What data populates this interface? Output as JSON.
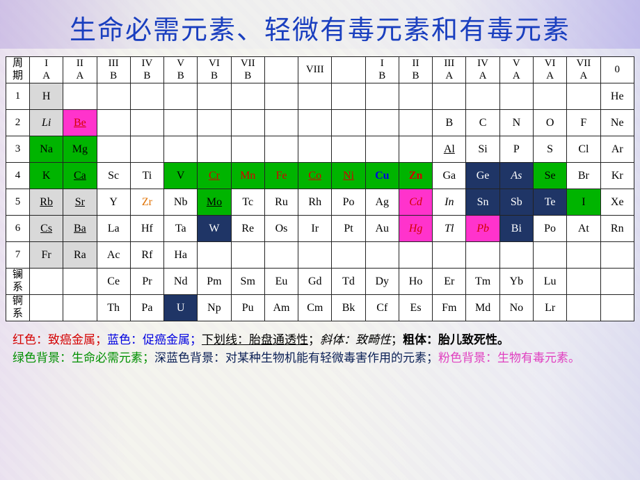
{
  "title": "生命必需元素、轻微有毒元素和有毒元素",
  "colors": {
    "title": "#1a3fbf",
    "cell_gray": "#d9d9d9",
    "cell_green": "#00b400",
    "cell_magenta": "#ff33cc",
    "cell_navy": "#1f3566",
    "txt_red": "#d40000",
    "txt_blue": "#0000e0",
    "txt_orange": "#e07000",
    "txt_white": "#ffffff"
  },
  "headers": {
    "period": "周\n期",
    "groups": [
      "I\nA",
      "II\nA",
      "III\nB",
      "IV\nB",
      "V\nB",
      "VI\nB",
      "VII\nB",
      "",
      "VIII",
      "",
      "I\nB",
      "II\nB",
      "III\nA",
      "IV\nA",
      "V\nA",
      "VI\nA",
      "VII\nA",
      "0"
    ]
  },
  "rows": [
    {
      "label": "1",
      "cells": [
        {
          "t": "H",
          "bg": "gray"
        },
        {
          "t": ""
        },
        {
          "t": ""
        },
        {
          "t": ""
        },
        {
          "t": ""
        },
        {
          "t": ""
        },
        {
          "t": ""
        },
        {
          "t": ""
        },
        {
          "t": ""
        },
        {
          "t": ""
        },
        {
          "t": ""
        },
        {
          "t": ""
        },
        {
          "t": ""
        },
        {
          "t": ""
        },
        {
          "t": ""
        },
        {
          "t": ""
        },
        {
          "t": ""
        },
        {
          "t": "He"
        }
      ]
    },
    {
      "label": "2",
      "cells": [
        {
          "t": "Li",
          "bg": "gray",
          "it": true
        },
        {
          "t": "Be",
          "bg": "magenta",
          "ul": true,
          "cl": "red"
        },
        {
          "t": ""
        },
        {
          "t": ""
        },
        {
          "t": ""
        },
        {
          "t": ""
        },
        {
          "t": ""
        },
        {
          "t": ""
        },
        {
          "t": ""
        },
        {
          "t": ""
        },
        {
          "t": ""
        },
        {
          "t": ""
        },
        {
          "t": "B"
        },
        {
          "t": "C"
        },
        {
          "t": "N"
        },
        {
          "t": "O"
        },
        {
          "t": "F"
        },
        {
          "t": "Ne"
        }
      ]
    },
    {
      "label": "3",
      "cells": [
        {
          "t": "Na",
          "bg": "green"
        },
        {
          "t": "Mg",
          "bg": "green"
        },
        {
          "t": ""
        },
        {
          "t": ""
        },
        {
          "t": ""
        },
        {
          "t": ""
        },
        {
          "t": ""
        },
        {
          "t": ""
        },
        {
          "t": ""
        },
        {
          "t": ""
        },
        {
          "t": ""
        },
        {
          "t": ""
        },
        {
          "t": "Al",
          "ul": true
        },
        {
          "t": "Si"
        },
        {
          "t": "P"
        },
        {
          "t": "S"
        },
        {
          "t": "Cl"
        },
        {
          "t": "Ar"
        }
      ]
    },
    {
      "label": "4",
      "cells": [
        {
          "t": "K",
          "bg": "green"
        },
        {
          "t": "Ca",
          "bg": "green",
          "ul": true
        },
        {
          "t": "Sc"
        },
        {
          "t": "Ti"
        },
        {
          "t": "V",
          "bg": "green"
        },
        {
          "t": "Cr",
          "bg": "green",
          "ul": true,
          "cl": "red"
        },
        {
          "t": "Mn",
          "bg": "green",
          "cl": "red"
        },
        {
          "t": "Fe",
          "bg": "green",
          "cl": "red"
        },
        {
          "t": "Co",
          "bg": "green",
          "ul": true,
          "cl": "red"
        },
        {
          "t": "Ni",
          "bg": "green",
          "ul": true,
          "cl": "red"
        },
        {
          "t": "Cu",
          "bg": "green",
          "cl": "blue",
          "bd": true
        },
        {
          "t": "Zn",
          "bg": "green",
          "cl": "red",
          "bd": true
        },
        {
          "t": "Ga"
        },
        {
          "t": "Ge",
          "bg": "navy"
        },
        {
          "t": "As",
          "bg": "navy",
          "it": true,
          "cl": "red"
        },
        {
          "t": "Se",
          "bg": "green"
        },
        {
          "t": "Br"
        },
        {
          "t": "Kr"
        }
      ]
    },
    {
      "label": "5",
      "cells": [
        {
          "t": "Rb",
          "bg": "gray",
          "ul": true
        },
        {
          "t": "Sr",
          "bg": "gray",
          "ul": true
        },
        {
          "t": "Y"
        },
        {
          "t": "Zr",
          "cl": "orange"
        },
        {
          "t": "Nb"
        },
        {
          "t": "Mo",
          "bg": "green",
          "ul": true
        },
        {
          "t": "Tc"
        },
        {
          "t": "Ru"
        },
        {
          "t": "Rh"
        },
        {
          "t": "Po"
        },
        {
          "t": "Ag"
        },
        {
          "t": "Cd",
          "bg": "magenta",
          "it": true,
          "cl": "red"
        },
        {
          "t": "In",
          "it": true
        },
        {
          "t": "Sn",
          "bg": "navy",
          "cl": "red"
        },
        {
          "t": "Sb",
          "bg": "navy"
        },
        {
          "t": "Te",
          "bg": "navy"
        },
        {
          "t": "I",
          "bg": "green"
        },
        {
          "t": "Xe"
        }
      ]
    },
    {
      "label": "6",
      "cells": [
        {
          "t": "Cs",
          "bg": "gray",
          "ul": true
        },
        {
          "t": "Ba",
          "bg": "gray",
          "ul": true
        },
        {
          "t": "La"
        },
        {
          "t": "Hf"
        },
        {
          "t": "Ta"
        },
        {
          "t": "W",
          "bg": "navy"
        },
        {
          "t": "Re"
        },
        {
          "t": "Os"
        },
        {
          "t": "Ir"
        },
        {
          "t": "Pt"
        },
        {
          "t": "Au"
        },
        {
          "t": "Hg",
          "bg": "magenta",
          "it": true,
          "cl": "red"
        },
        {
          "t": "Tl",
          "it": true
        },
        {
          "t": "Pb",
          "bg": "magenta",
          "it": true,
          "cl": "red"
        },
        {
          "t": "Bi",
          "bg": "navy"
        },
        {
          "t": "Po"
        },
        {
          "t": "At"
        },
        {
          "t": "Rn"
        }
      ]
    },
    {
      "label": "7",
      "cells": [
        {
          "t": "Fr",
          "bg": "gray"
        },
        {
          "t": "Ra",
          "bg": "gray"
        },
        {
          "t": "Ac"
        },
        {
          "t": "Rf"
        },
        {
          "t": "Ha"
        },
        {
          "t": ""
        },
        {
          "t": ""
        },
        {
          "t": ""
        },
        {
          "t": ""
        },
        {
          "t": ""
        },
        {
          "t": ""
        },
        {
          "t": ""
        },
        {
          "t": ""
        },
        {
          "t": ""
        },
        {
          "t": ""
        },
        {
          "t": ""
        },
        {
          "t": ""
        },
        {
          "t": ""
        }
      ]
    },
    {
      "label": "镧\n系",
      "cells": [
        {
          "t": ""
        },
        {
          "t": ""
        },
        {
          "t": "Ce"
        },
        {
          "t": "Pr"
        },
        {
          "t": "Nd"
        },
        {
          "t": "Pm"
        },
        {
          "t": "Sm"
        },
        {
          "t": "Eu"
        },
        {
          "t": "Gd"
        },
        {
          "t": "Td"
        },
        {
          "t": "Dy"
        },
        {
          "t": "Ho"
        },
        {
          "t": "Er"
        },
        {
          "t": "Tm"
        },
        {
          "t": "Yb"
        },
        {
          "t": "Lu"
        },
        {
          "t": ""
        },
        {
          "t": ""
        }
      ]
    },
    {
      "label": "锕\n系",
      "cells": [
        {
          "t": ""
        },
        {
          "t": ""
        },
        {
          "t": "Th"
        },
        {
          "t": "Pa"
        },
        {
          "t": "U",
          "bg": "navy"
        },
        {
          "t": "Np"
        },
        {
          "t": "Pu"
        },
        {
          "t": "Am"
        },
        {
          "t": "Cm"
        },
        {
          "t": "Bk"
        },
        {
          "t": "Cf"
        },
        {
          "t": "Es"
        },
        {
          "t": "Fm"
        },
        {
          "t": "Md"
        },
        {
          "t": "No"
        },
        {
          "t": "Lr"
        },
        {
          "t": ""
        },
        {
          "t": ""
        }
      ]
    }
  ],
  "legend": {
    "line1": {
      "p1": "红色：致癌金属；",
      "p2": "蓝色：促癌金属；",
      "p3": "下划线：胎盘通透性",
      "sep1": "；",
      "p4": "斜体：致畸性",
      "sep2": "；",
      "p5": "粗体：胎儿致死性。"
    },
    "line2": {
      "p1": "绿色背景：生命必需元素；",
      "p2": "深蓝色背景：对某种生物机能有轻微毒害作用的元素；",
      "p3": "粉色背景：生物有毒元素。"
    }
  }
}
